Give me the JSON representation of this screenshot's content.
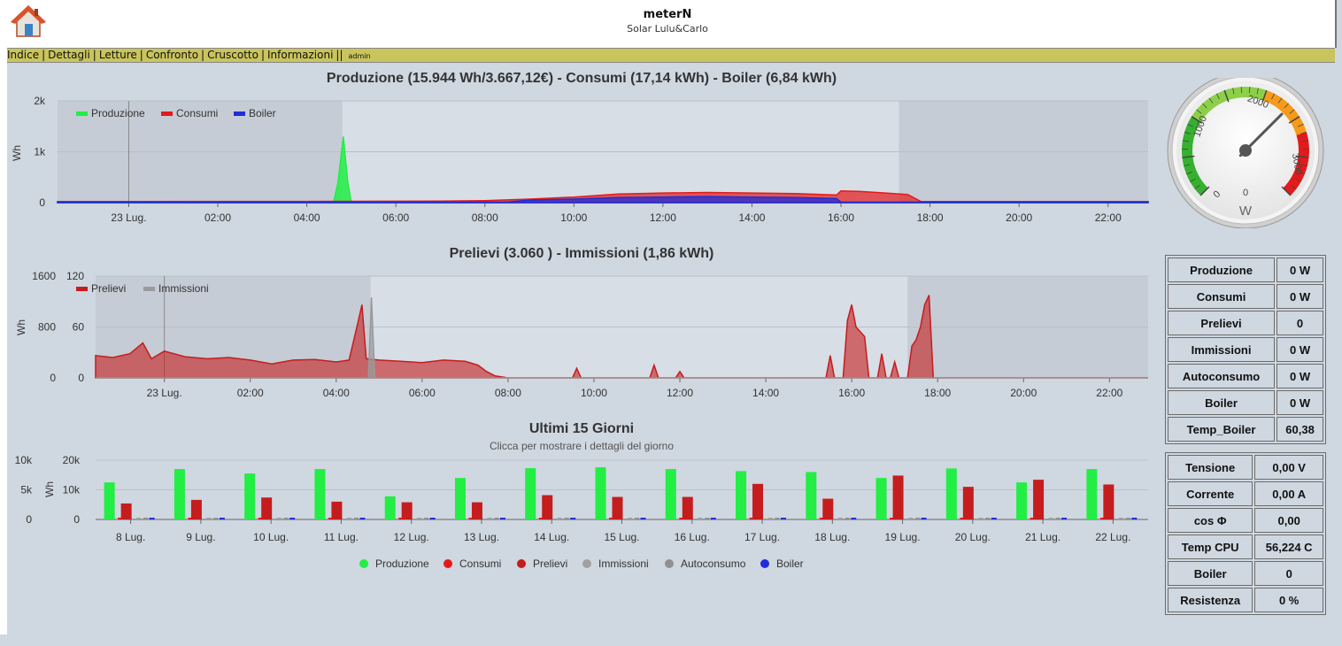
{
  "header": {
    "title": "meterN",
    "subtitle": "Solar Lulu&Carlo"
  },
  "menu": {
    "items": [
      "Indice",
      "Dettagli",
      "Letture",
      "Confronto",
      "Cruscotto",
      "Informazioni"
    ],
    "admin": "admin"
  },
  "colors": {
    "produzione": "#22ee44",
    "consumi": "#e41a1a",
    "boiler": "#1f2ed8",
    "prelievi": "#c51d1d",
    "immissioni": "#9a9a9a",
    "night": "#c5ccd6"
  },
  "chart1": {
    "title": "Produzione (15.944 Wh/3.667,12€) - Consumi (17,14 kWh) - Boiler (6,84 kWh)",
    "ylabel": "Wh",
    "yticks": [
      "0",
      "1k",
      "2k"
    ],
    "xticks": [
      "23 Lug.",
      "02:00",
      "04:00",
      "06:00",
      "08:00",
      "10:00",
      "12:00",
      "14:00",
      "16:00",
      "18:00",
      "20:00",
      "22:00"
    ],
    "legend": [
      "Produzione",
      "Consumi",
      "Boiler"
    ]
  },
  "chart2": {
    "title": "Prelievi (3.060 ) - Immissioni (1,86 kWh)",
    "ylabel": "Wh",
    "yticks_left": [
      "0",
      "800",
      "1600"
    ],
    "yticks_right": [
      "0",
      "60",
      "120"
    ],
    "xticks": [
      "23 Lug.",
      "02:00",
      "04:00",
      "06:00",
      "08:00",
      "10:00",
      "12:00",
      "14:00",
      "16:00",
      "18:00",
      "20:00",
      "22:00"
    ],
    "legend": [
      "Prelievi",
      "Immissioni"
    ]
  },
  "chart3": {
    "title": "Ultimi 15 Giorni",
    "subtitle": "Clicca per mostrare i dettagli del giorno",
    "ylabel": "Wh",
    "yticks_left": [
      "0",
      "5k",
      "10k"
    ],
    "yticks_right": [
      "0",
      "10k",
      "20k"
    ],
    "legend": [
      "Produzione",
      "Consumi",
      "Prelievi",
      "Immissioni",
      "Autoconsumo",
      "Boiler"
    ]
  },
  "chart_data": [
    {
      "type": "area",
      "title": "Produzione (15.944 Wh/3.667,12€) - Consumi (17,14 kWh) - Boiler (6,84 kWh)",
      "ylabel": "Wh",
      "ylim": [
        0,
        2000
      ],
      "xlim_hours": [
        -1.6,
        22.9
      ],
      "grid": true,
      "legend": "top-left",
      "series": [
        {
          "name": "Produzione",
          "points": [
            [
              -1.6,
              0
            ],
            [
              4.6,
              0
            ],
            [
              4.7,
              400
            ],
            [
              4.82,
              1300
            ],
            [
              4.92,
              400
            ],
            [
              5.0,
              0
            ],
            [
              22.9,
              0
            ]
          ]
        },
        {
          "name": "Consumi",
          "points": [
            [
              -1.6,
              20
            ],
            [
              4.0,
              25
            ],
            [
              7.0,
              30
            ],
            [
              8.0,
              40
            ],
            [
              9.0,
              70
            ],
            [
              10.0,
              110
            ],
            [
              11.0,
              170
            ],
            [
              12.0,
              190
            ],
            [
              13.0,
              200
            ],
            [
              14.0,
              190
            ],
            [
              15.0,
              180
            ],
            [
              15.9,
              150
            ],
            [
              16.0,
              230
            ],
            [
              16.4,
              220
            ],
            [
              17.0,
              190
            ],
            [
              17.5,
              160
            ],
            [
              17.8,
              20
            ],
            [
              22.9,
              20
            ]
          ]
        },
        {
          "name": "Boiler",
          "points": [
            [
              -1.6,
              10
            ],
            [
              8.5,
              10
            ],
            [
              9.0,
              50
            ],
            [
              10.0,
              70
            ],
            [
              11.0,
              100
            ],
            [
              12.0,
              110
            ],
            [
              13.0,
              120
            ],
            [
              14.0,
              110
            ],
            [
              15.0,
              100
            ],
            [
              15.9,
              80
            ],
            [
              16.0,
              10
            ],
            [
              22.9,
              10
            ]
          ]
        }
      ]
    },
    {
      "type": "area",
      "title": "Prelievi (3.060 ) - Immissioni (1,86 kWh)",
      "ylabel": "Wh",
      "ylim": [
        0,
        1600
      ],
      "y2lim": [
        0,
        120
      ],
      "xlim_hours": [
        -1.6,
        22.9
      ],
      "grid": true,
      "legend": "top-left",
      "series": [
        {
          "name": "Prelievi",
          "points": [
            [
              -1.6,
              350
            ],
            [
              -1.2,
              320
            ],
            [
              -0.8,
              380
            ],
            [
              -0.5,
              550
            ],
            [
              -0.3,
              300
            ],
            [
              0.0,
              420
            ],
            [
              0.5,
              330
            ],
            [
              1.0,
              300
            ],
            [
              1.5,
              320
            ],
            [
              2.0,
              280
            ],
            [
              2.5,
              220
            ],
            [
              3.0,
              280
            ],
            [
              3.5,
              290
            ],
            [
              4.0,
              250
            ],
            [
              4.3,
              280
            ],
            [
              4.5,
              850
            ],
            [
              4.6,
              1150
            ],
            [
              4.7,
              300
            ],
            [
              5.0,
              280
            ],
            [
              5.5,
              260
            ],
            [
              6.0,
              240
            ],
            [
              6.5,
              280
            ],
            [
              7.0,
              260
            ],
            [
              7.3,
              200
            ],
            [
              7.5,
              100
            ],
            [
              7.7,
              30
            ],
            [
              8.0,
              0
            ],
            [
              9.5,
              0
            ],
            [
              9.6,
              150
            ],
            [
              9.7,
              0
            ],
            [
              11.3,
              0
            ],
            [
              11.4,
              200
            ],
            [
              11.5,
              0
            ],
            [
              11.9,
              0
            ],
            [
              12.0,
              100
            ],
            [
              12.1,
              0
            ],
            [
              15.4,
              0
            ],
            [
              15.5,
              350
            ],
            [
              15.6,
              0
            ],
            [
              15.8,
              0
            ],
            [
              15.9,
              900
            ],
            [
              16.0,
              1150
            ],
            [
              16.1,
              800
            ],
            [
              16.3,
              650
            ],
            [
              16.4,
              0
            ],
            [
              16.6,
              0
            ],
            [
              16.7,
              380
            ],
            [
              16.8,
              0
            ],
            [
              16.9,
              0
            ],
            [
              17.0,
              250
            ],
            [
              17.1,
              0
            ],
            [
              17.3,
              0
            ],
            [
              17.4,
              500
            ],
            [
              17.5,
              600
            ],
            [
              17.6,
              800
            ],
            [
              17.7,
              1150
            ],
            [
              17.8,
              1300
            ],
            [
              17.9,
              0
            ],
            [
              22.9,
              0
            ]
          ]
        },
        {
          "name": "Immissioni",
          "points": [
            [
              -1.6,
              0
            ],
            [
              4.75,
              0
            ],
            [
              4.82,
              95
            ],
            [
              4.9,
              0
            ],
            [
              22.9,
              0
            ]
          ]
        }
      ]
    },
    {
      "type": "bar",
      "title": "Ultimi 15 Giorni",
      "subtitle": "Clicca per mostrare i dettagli del giorno",
      "ylabel": "Wh",
      "ylim": [
        0,
        10000
      ],
      "y2lim": [
        0,
        20000
      ],
      "grid": true,
      "legend": "bottom",
      "categories": [
        "8 Lug.",
        "9 Lug.",
        "10 Lug.",
        "11 Lug.",
        "12 Lug.",
        "13 Lug.",
        "14 Lug.",
        "15 Lug.",
        "16 Lug.",
        "17 Lug.",
        "18 Lug.",
        "19 Lug.",
        "20 Lug.",
        "21 Lug.",
        "22 Lug."
      ],
      "series": [
        {
          "name": "Produzione",
          "axis": "right",
          "values": [
            12500,
            17000,
            15500,
            17000,
            7800,
            14000,
            17300,
            17600,
            17000,
            16300,
            16000,
            14000,
            17200,
            12500,
            17000
          ]
        },
        {
          "name": "Consumi",
          "values": [
            100,
            100,
            100,
            100,
            100,
            100,
            100,
            100,
            100,
            100,
            100,
            100,
            100,
            100,
            100
          ]
        },
        {
          "name": "Prelievi",
          "values": [
            2700,
            3300,
            3700,
            3000,
            2900,
            2900,
            4100,
            3800,
            3800,
            6000,
            3500,
            7400,
            5500,
            6700,
            5900
          ]
        },
        {
          "name": "Immissioni",
          "values": [
            80,
            80,
            80,
            80,
            80,
            80,
            80,
            80,
            80,
            80,
            80,
            80,
            80,
            80,
            80
          ]
        },
        {
          "name": "Autoconsumo",
          "values": [
            100,
            100,
            100,
            100,
            100,
            100,
            100,
            100,
            100,
            100,
            100,
            100,
            100,
            100,
            100
          ]
        },
        {
          "name": "Boiler",
          "values": [
            150,
            150,
            150,
            150,
            150,
            150,
            150,
            150,
            150,
            150,
            150,
            150,
            150,
            150,
            150
          ]
        }
      ]
    }
  ],
  "gauge": {
    "value": 0,
    "unit": "W",
    "ticks": [
      "0",
      "1000",
      "2000",
      "3000"
    ],
    "max": 3500
  },
  "info1": [
    {
      "label": "Produzione",
      "value": "0 W"
    },
    {
      "label": "Consumi",
      "value": "0 W"
    },
    {
      "label": "Prelievi",
      "value": "0"
    },
    {
      "label": "Immissioni",
      "value": "0 W"
    },
    {
      "label": "Autoconsumo",
      "value": "0 W"
    },
    {
      "label": "Boiler",
      "value": "0 W"
    },
    {
      "label": "Temp_Boiler",
      "value": "60,38"
    }
  ],
  "info2": [
    {
      "label": "Tensione",
      "value": "0,00 V"
    },
    {
      "label": "Corrente",
      "value": "0,00 A"
    },
    {
      "label": "cos Φ",
      "value": "0,00"
    },
    {
      "label": "Temp CPU",
      "value": "56,224 C"
    },
    {
      "label": "Boiler",
      "value": "0"
    },
    {
      "label": "Resistenza",
      "value": "0 %"
    }
  ]
}
